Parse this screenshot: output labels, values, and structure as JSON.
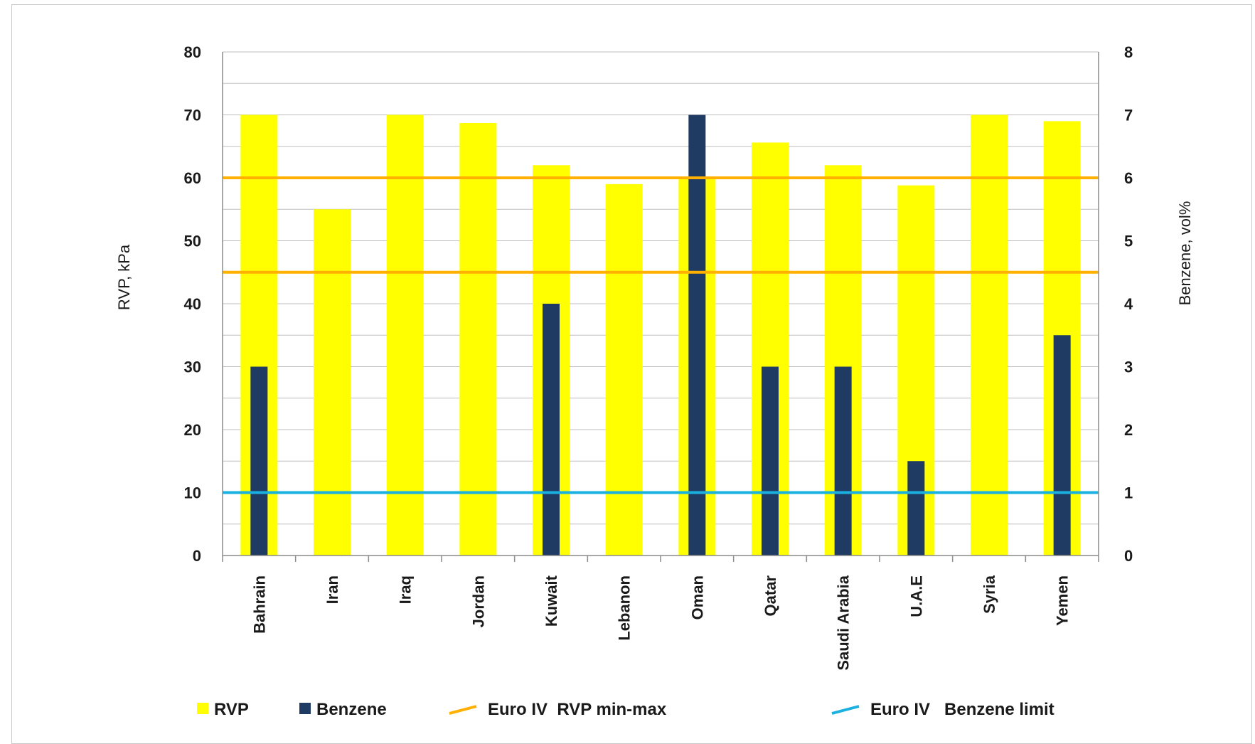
{
  "chart_data": {
    "type": "bar",
    "categories": [
      "Bahrain",
      "Iran",
      "Iraq",
      "Jordan",
      "Kuwait",
      "Lebanon",
      "Oman",
      "Qatar",
      "Saudi Arabia",
      "U.A.E",
      "Syria",
      "Yemen"
    ],
    "series": [
      {
        "name": "RVP",
        "axis": "left",
        "color": "#ffff00",
        "values": [
          70,
          55,
          70,
          68.7,
          62,
          59,
          60,
          65.6,
          62,
          58.8,
          70,
          69
        ]
      },
      {
        "name": "Benzene",
        "axis": "right",
        "color": "#1f3b63",
        "values": [
          3,
          0,
          0,
          0,
          4,
          0,
          7,
          3,
          3,
          1.5,
          0,
          3.5
        ]
      }
    ],
    "reference_lines": [
      {
        "name": "Euro IV  RVP min-max",
        "axis": "left",
        "color": "#ffb000",
        "values": [
          45,
          60
        ]
      },
      {
        "name": "Euro IV   Benzene limit",
        "axis": "right",
        "color": "#1ab0e0",
        "values": [
          1
        ]
      }
    ],
    "ylabel": "RVP, kPa",
    "y2label": "Benzene, vol%",
    "ylim": [
      0,
      80
    ],
    "y2lim": [
      0,
      8
    ],
    "yticks": [
      "0",
      "10",
      "20",
      "30",
      "40",
      "50",
      "60",
      "70",
      "80"
    ],
    "y2ticks": [
      "0",
      "1",
      "2",
      "3",
      "4",
      "5",
      "6",
      "7",
      "8"
    ],
    "grid": true,
    "legend_position": "bottom"
  }
}
